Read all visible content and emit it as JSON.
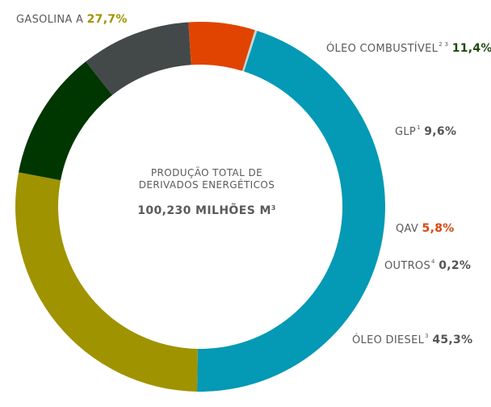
{
  "chart_data": {
    "type": "pie",
    "donut": true,
    "center_text": {
      "line1": "PRODUÇÃO TOTAL DE",
      "line2": "DERIVADOS ENERGÉTICOS",
      "total": "100,230 MILHÕES M",
      "total_sup": "3"
    },
    "slices": [
      {
        "label": "GASOLINA A",
        "sup": "",
        "value": 27.7,
        "value_text": "27,7%",
        "color": "#a09300",
        "label_color": "#a09300"
      },
      {
        "label": "ÓLEO COMBUSTÍVEL",
        "sup": "2 3",
        "value": 11.4,
        "value_text": "11,4%",
        "color": "#003600",
        "label_color": "#1f4a12"
      },
      {
        "label": "GLP",
        "sup": "1",
        "value": 9.6,
        "value_text": "9,6%",
        "color": "#434949",
        "label_color": "#555555"
      },
      {
        "label": "QAV",
        "sup": "",
        "value": 5.8,
        "value_text": "5,8%",
        "color": "#e04400",
        "label_color": "#d9480f"
      },
      {
        "label": "OUTROS",
        "sup": "4",
        "value": 0.2,
        "value_text": "0,2%",
        "color": "#bfd8d8",
        "label_color": "#555555"
      },
      {
        "label": "ÓLEO DIESEL",
        "sup": "3",
        "value": 45.3,
        "value_text": "45,3%",
        "color": "#0499b5",
        "label_color": "#555555"
      }
    ]
  }
}
